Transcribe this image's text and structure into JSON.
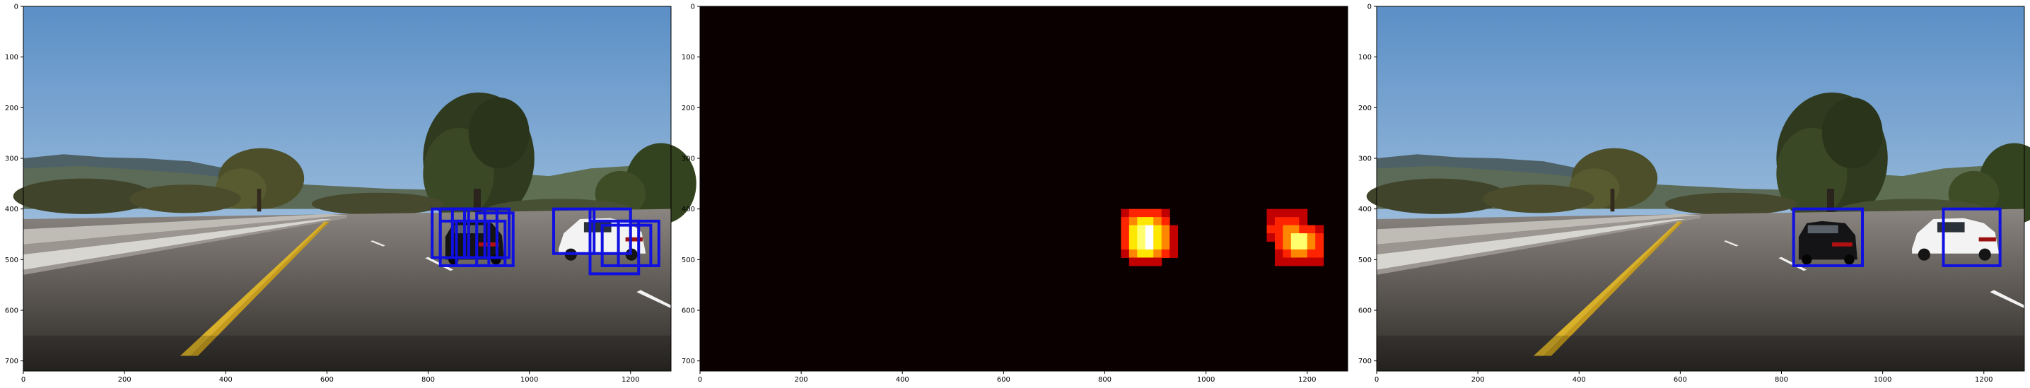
{
  "chart_data": [
    {
      "type": "image",
      "panel": "original-with-sliding-window-detections",
      "xlim": [
        0,
        1280
      ],
      "ylim": [
        720,
        0
      ],
      "xticks": [
        0,
        200,
        400,
        600,
        800,
        1000,
        1200
      ],
      "yticks": [
        0,
        100,
        200,
        300,
        400,
        500,
        600,
        700
      ],
      "box_color": "#1010e0",
      "boxes": [
        {
          "x0": 808,
          "y0": 400,
          "x1": 880,
          "y1": 496
        },
        {
          "x0": 824,
          "y0": 400,
          "x1": 912,
          "y1": 496
        },
        {
          "x0": 848,
          "y0": 400,
          "x1": 936,
          "y1": 496
        },
        {
          "x0": 872,
          "y0": 400,
          "x1": 960,
          "y1": 496
        },
        {
          "x0": 824,
          "y0": 424,
          "x1": 920,
          "y1": 512
        },
        {
          "x0": 856,
          "y0": 424,
          "x1": 952,
          "y1": 512
        },
        {
          "x0": 896,
          "y0": 408,
          "x1": 968,
          "y1": 512
        },
        {
          "x0": 1048,
          "y0": 400,
          "x1": 1128,
          "y1": 488
        },
        {
          "x0": 1120,
          "y0": 400,
          "x1": 1200,
          "y1": 488
        },
        {
          "x0": 1120,
          "y0": 424,
          "x1": 1216,
          "y1": 528
        },
        {
          "x0": 1144,
          "y0": 432,
          "x1": 1240,
          "y1": 512
        },
        {
          "x0": 1176,
          "y0": 424,
          "x1": 1256,
          "y1": 512
        }
      ]
    },
    {
      "type": "heatmap",
      "panel": "detection-heatmap",
      "colormap": "hot",
      "xlim": [
        0,
        1280
      ],
      "ylim": [
        720,
        0
      ],
      "xticks": [
        0,
        200,
        400,
        600,
        800,
        1000,
        1200
      ],
      "yticks": [
        0,
        100,
        200,
        300,
        400,
        500,
        600,
        700
      ],
      "cell_size": 16,
      "max_value": 7,
      "cells": [
        {
          "x": 832,
          "y": 400,
          "v": 2
        },
        {
          "x": 848,
          "y": 400,
          "v": 3
        },
        {
          "x": 864,
          "y": 400,
          "v": 3
        },
        {
          "x": 880,
          "y": 400,
          "v": 3
        },
        {
          "x": 896,
          "y": 400,
          "v": 3
        },
        {
          "x": 912,
          "y": 400,
          "v": 2
        },
        {
          "x": 832,
          "y": 416,
          "v": 3
        },
        {
          "x": 848,
          "y": 416,
          "v": 4
        },
        {
          "x": 864,
          "y": 416,
          "v": 5
        },
        {
          "x": 880,
          "y": 416,
          "v": 5
        },
        {
          "x": 896,
          "y": 416,
          "v": 4
        },
        {
          "x": 912,
          "y": 416,
          "v": 3
        },
        {
          "x": 832,
          "y": 432,
          "v": 3
        },
        {
          "x": 848,
          "y": 432,
          "v": 5
        },
        {
          "x": 864,
          "y": 432,
          "v": 6
        },
        {
          "x": 880,
          "y": 432,
          "v": 7
        },
        {
          "x": 896,
          "y": 432,
          "v": 5
        },
        {
          "x": 912,
          "y": 432,
          "v": 4
        },
        {
          "x": 928,
          "y": 432,
          "v": 2
        },
        {
          "x": 832,
          "y": 448,
          "v": 3
        },
        {
          "x": 848,
          "y": 448,
          "v": 5
        },
        {
          "x": 864,
          "y": 448,
          "v": 6
        },
        {
          "x": 880,
          "y": 448,
          "v": 7
        },
        {
          "x": 896,
          "y": 448,
          "v": 5
        },
        {
          "x": 912,
          "y": 448,
          "v": 4
        },
        {
          "x": 928,
          "y": 448,
          "v": 2
        },
        {
          "x": 832,
          "y": 464,
          "v": 3
        },
        {
          "x": 848,
          "y": 464,
          "v": 5
        },
        {
          "x": 864,
          "y": 464,
          "v": 6
        },
        {
          "x": 880,
          "y": 464,
          "v": 7
        },
        {
          "x": 896,
          "y": 464,
          "v": 5
        },
        {
          "x": 912,
          "y": 464,
          "v": 4
        },
        {
          "x": 928,
          "y": 464,
          "v": 2
        },
        {
          "x": 832,
          "y": 480,
          "v": 2
        },
        {
          "x": 848,
          "y": 480,
          "v": 4
        },
        {
          "x": 864,
          "y": 480,
          "v": 5
        },
        {
          "x": 880,
          "y": 480,
          "v": 5
        },
        {
          "x": 896,
          "y": 480,
          "v": 4
        },
        {
          "x": 912,
          "y": 480,
          "v": 3
        },
        {
          "x": 928,
          "y": 480,
          "v": 2
        },
        {
          "x": 848,
          "y": 496,
          "v": 2
        },
        {
          "x": 864,
          "y": 496,
          "v": 2
        },
        {
          "x": 880,
          "y": 496,
          "v": 2
        },
        {
          "x": 896,
          "y": 496,
          "v": 2
        },
        {
          "x": 1120,
          "y": 400,
          "v": 2
        },
        {
          "x": 1136,
          "y": 400,
          "v": 2
        },
        {
          "x": 1152,
          "y": 400,
          "v": 2
        },
        {
          "x": 1168,
          "y": 400,
          "v": 2
        },
        {
          "x": 1184,
          "y": 400,
          "v": 2
        },
        {
          "x": 1120,
          "y": 416,
          "v": 2
        },
        {
          "x": 1136,
          "y": 416,
          "v": 3
        },
        {
          "x": 1152,
          "y": 416,
          "v": 3
        },
        {
          "x": 1168,
          "y": 416,
          "v": 3
        },
        {
          "x": 1184,
          "y": 416,
          "v": 2
        },
        {
          "x": 1120,
          "y": 432,
          "v": 3
        },
        {
          "x": 1136,
          "y": 432,
          "v": 3
        },
        {
          "x": 1152,
          "y": 432,
          "v": 4
        },
        {
          "x": 1168,
          "y": 432,
          "v": 4
        },
        {
          "x": 1184,
          "y": 432,
          "v": 3
        },
        {
          "x": 1200,
          "y": 432,
          "v": 3
        },
        {
          "x": 1216,
          "y": 432,
          "v": 2
        },
        {
          "x": 1120,
          "y": 448,
          "v": 2
        },
        {
          "x": 1136,
          "y": 448,
          "v": 3
        },
        {
          "x": 1152,
          "y": 448,
          "v": 4
        },
        {
          "x": 1168,
          "y": 448,
          "v": 6
        },
        {
          "x": 1184,
          "y": 448,
          "v": 6
        },
        {
          "x": 1200,
          "y": 448,
          "v": 4
        },
        {
          "x": 1216,
          "y": 448,
          "v": 3
        },
        {
          "x": 1136,
          "y": 464,
          "v": 3
        },
        {
          "x": 1152,
          "y": 464,
          "v": 4
        },
        {
          "x": 1168,
          "y": 464,
          "v": 6
        },
        {
          "x": 1184,
          "y": 464,
          "v": 6
        },
        {
          "x": 1200,
          "y": 464,
          "v": 4
        },
        {
          "x": 1216,
          "y": 464,
          "v": 3
        },
        {
          "x": 1136,
          "y": 480,
          "v": 2
        },
        {
          "x": 1152,
          "y": 480,
          "v": 3
        },
        {
          "x": 1168,
          "y": 480,
          "v": 4
        },
        {
          "x": 1184,
          "y": 480,
          "v": 4
        },
        {
          "x": 1200,
          "y": 480,
          "v": 3
        },
        {
          "x": 1216,
          "y": 480,
          "v": 3
        },
        {
          "x": 1136,
          "y": 496,
          "v": 2
        },
        {
          "x": 1152,
          "y": 496,
          "v": 2
        },
        {
          "x": 1168,
          "y": 496,
          "v": 2
        },
        {
          "x": 1184,
          "y": 496,
          "v": 2
        },
        {
          "x": 1200,
          "y": 496,
          "v": 2
        },
        {
          "x": 1216,
          "y": 496,
          "v": 2
        }
      ]
    },
    {
      "type": "image",
      "panel": "final-labeled-vehicle-detections",
      "xlim": [
        0,
        1280
      ],
      "ylim": [
        720,
        0
      ],
      "xticks": [
        0,
        200,
        400,
        600,
        800,
        1000,
        1200
      ],
      "yticks": [
        0,
        100,
        200,
        300,
        400,
        500,
        600,
        700
      ],
      "box_color": "#1010e0",
      "boxes": [
        {
          "x0": 824,
          "y0": 400,
          "x1": 960,
          "y1": 512
        },
        {
          "x0": 1120,
          "y0": 400,
          "x1": 1232,
          "y1": 512
        }
      ]
    }
  ],
  "colors": {
    "sky_top": "#5b8fc6",
    "sky_bottom": "#c6d9ea",
    "hills": "#4a5e62",
    "trees": "#3c4a28",
    "road": "#5a5652",
    "road_near": "#35312e",
    "lane_yellow": "#d8b02a",
    "lane_white": "#f2f2f2",
    "car_white": "#f3f3f3",
    "car_dark": "#141416",
    "heat_background": "#0b0000"
  },
  "icons": [
    "car-icon"
  ]
}
